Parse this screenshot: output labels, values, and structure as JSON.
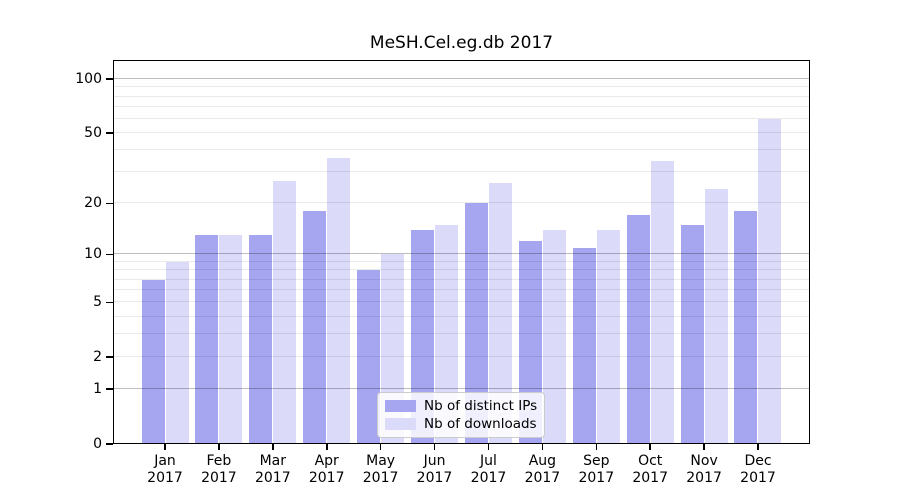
{
  "title": "MeSH.Cel.eg.db 2017",
  "legend": {
    "items": [
      {
        "label": "Nb of distinct IPs",
        "color": "#a6a6f0"
      },
      {
        "label": "Nb of downloads",
        "color": "#dbdaf8"
      }
    ]
  },
  "chart_data": {
    "type": "bar",
    "title": "MeSH.Cel.eg.db 2017",
    "categories": [
      "Jan",
      "Feb",
      "Mar",
      "Apr",
      "May",
      "Jun",
      "Jul",
      "Aug",
      "Sep",
      "Oct",
      "Nov",
      "Dec"
    ],
    "category_year": "2017",
    "series": [
      {
        "name": "Nb of distinct IPs",
        "color": "#a6a6f0",
        "values": [
          7,
          13,
          13,
          18,
          8,
          14,
          20,
          12,
          11,
          17,
          15,
          18
        ]
      },
      {
        "name": "Nb of downloads",
        "color": "#dbdaf8",
        "values": [
          9,
          13,
          27,
          36,
          10,
          15,
          26,
          14,
          14,
          35,
          24,
          60
        ]
      }
    ],
    "xlabel": "",
    "ylabel": "",
    "yscale": "log1p",
    "ylim": [
      0,
      127
    ],
    "ytick_labels": [
      "0",
      "1",
      "2",
      "5",
      "10",
      "20",
      "50",
      "100"
    ],
    "ytick_values": [
      0,
      1,
      2,
      5,
      10,
      20,
      50,
      100
    ],
    "major_gridline_values": [
      1,
      10,
      100
    ],
    "minor_gridline_values": [
      2,
      3,
      4,
      5,
      6,
      7,
      8,
      9,
      20,
      30,
      40,
      50,
      60,
      70,
      80,
      90
    ],
    "grid": "on",
    "legend_position": "inside-bottom-center",
    "axis_color": "#000000",
    "background_color": "#ffffff"
  }
}
